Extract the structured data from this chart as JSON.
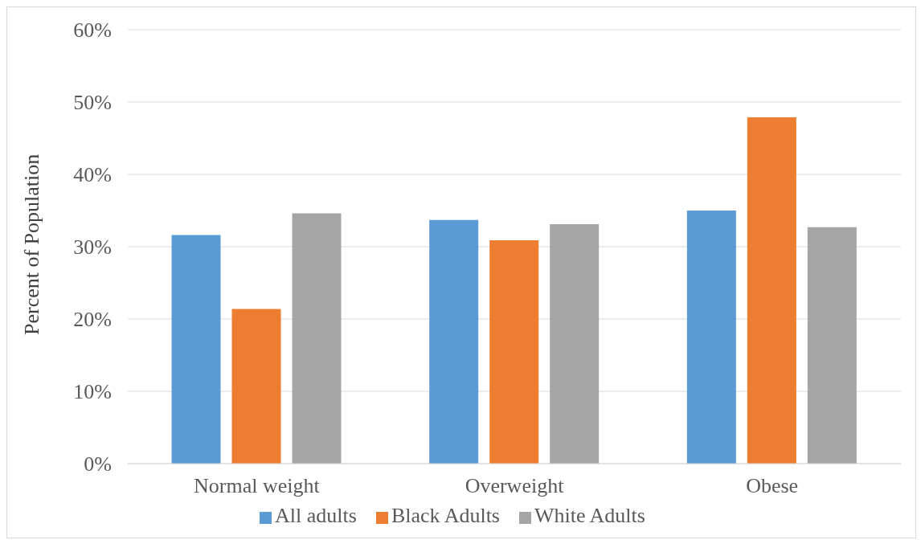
{
  "chart_data": {
    "type": "bar",
    "ylabel": "Percent of Population",
    "categories": [
      "Normal weight",
      "Overweight",
      "Obese"
    ],
    "series": [
      {
        "name": "All adults",
        "color": "#5b9bd5",
        "values": [
          31.6,
          33.7,
          35.0
        ]
      },
      {
        "name": "Black Adults",
        "color": "#ed7d31",
        "values": [
          21.4,
          30.9,
          47.9
        ]
      },
      {
        "name": "White Adults",
        "color": "#a5a5a5",
        "values": [
          34.6,
          33.1,
          32.7
        ]
      }
    ],
    "ylim": [
      0,
      60
    ],
    "yticks": [
      {
        "value": 0,
        "label": "0%"
      },
      {
        "value": 10,
        "label": "10%"
      },
      {
        "value": 20,
        "label": "20%"
      },
      {
        "value": 30,
        "label": "30%"
      },
      {
        "value": 40,
        "label": "40%"
      },
      {
        "value": 50,
        "label": "50%"
      },
      {
        "value": 60,
        "label": "60%"
      }
    ],
    "grid": "y",
    "legend": "bottom"
  }
}
